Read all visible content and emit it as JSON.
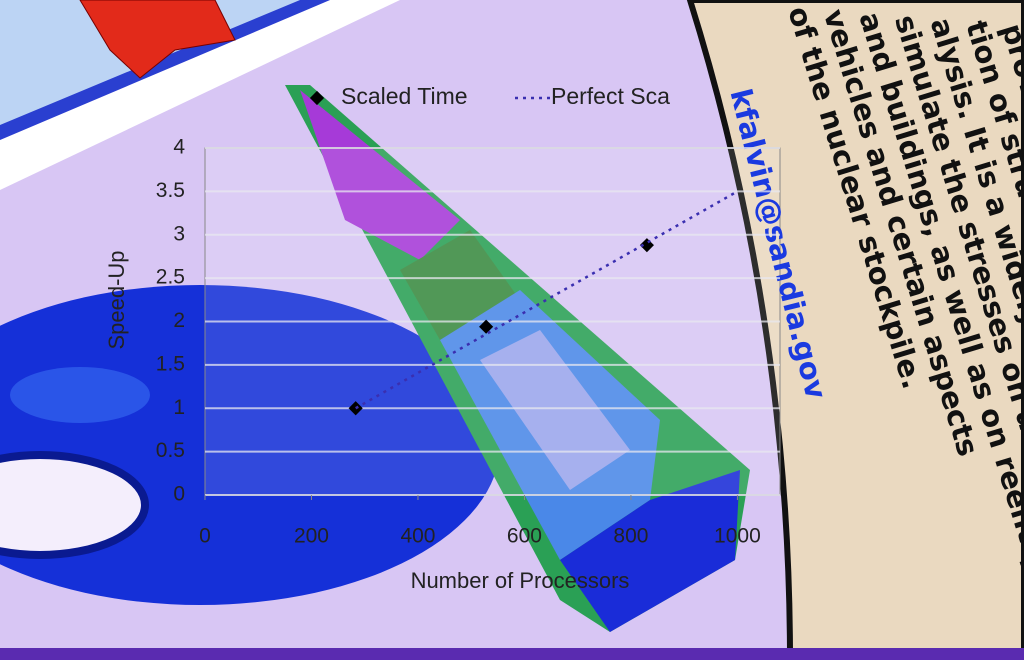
{
  "chart_data": {
    "type": "scatter",
    "xlabel": "Number of Processors",
    "ylabel": "Speed-Up",
    "xlim": [
      0,
      1080
    ],
    "ylim": [
      0,
      4
    ],
    "xticks": [
      0,
      200,
      400,
      600,
      800,
      1000
    ],
    "yticks": [
      0,
      0.5,
      1,
      1.5,
      2,
      2.5,
      3,
      3.5,
      4
    ],
    "grid": true,
    "series": [
      {
        "name": "Scaled Time",
        "color": "#000000",
        "mode": "markers",
        "x": [
          283,
          528,
          830
        ],
        "values": [
          1,
          1.94,
          2.88
        ]
      },
      {
        "name": "Perfect Sca",
        "color": "#3a2fb0",
        "mode": "dotted",
        "x": [
          283,
          1000
        ],
        "values": [
          1,
          3.5
        ]
      }
    ]
  },
  "poster_text": {
    "lines": [
      "provides",
      "tion of structural dy",
      "alysis. It is a widely used program",
      "simulate the stresses on aircraft",
      "and buildings, as well as on reentry",
      "vehicles and certain aspects",
      "of the nuclear stockpile."
    ],
    "email": "kfalvin@sandia.gov"
  }
}
